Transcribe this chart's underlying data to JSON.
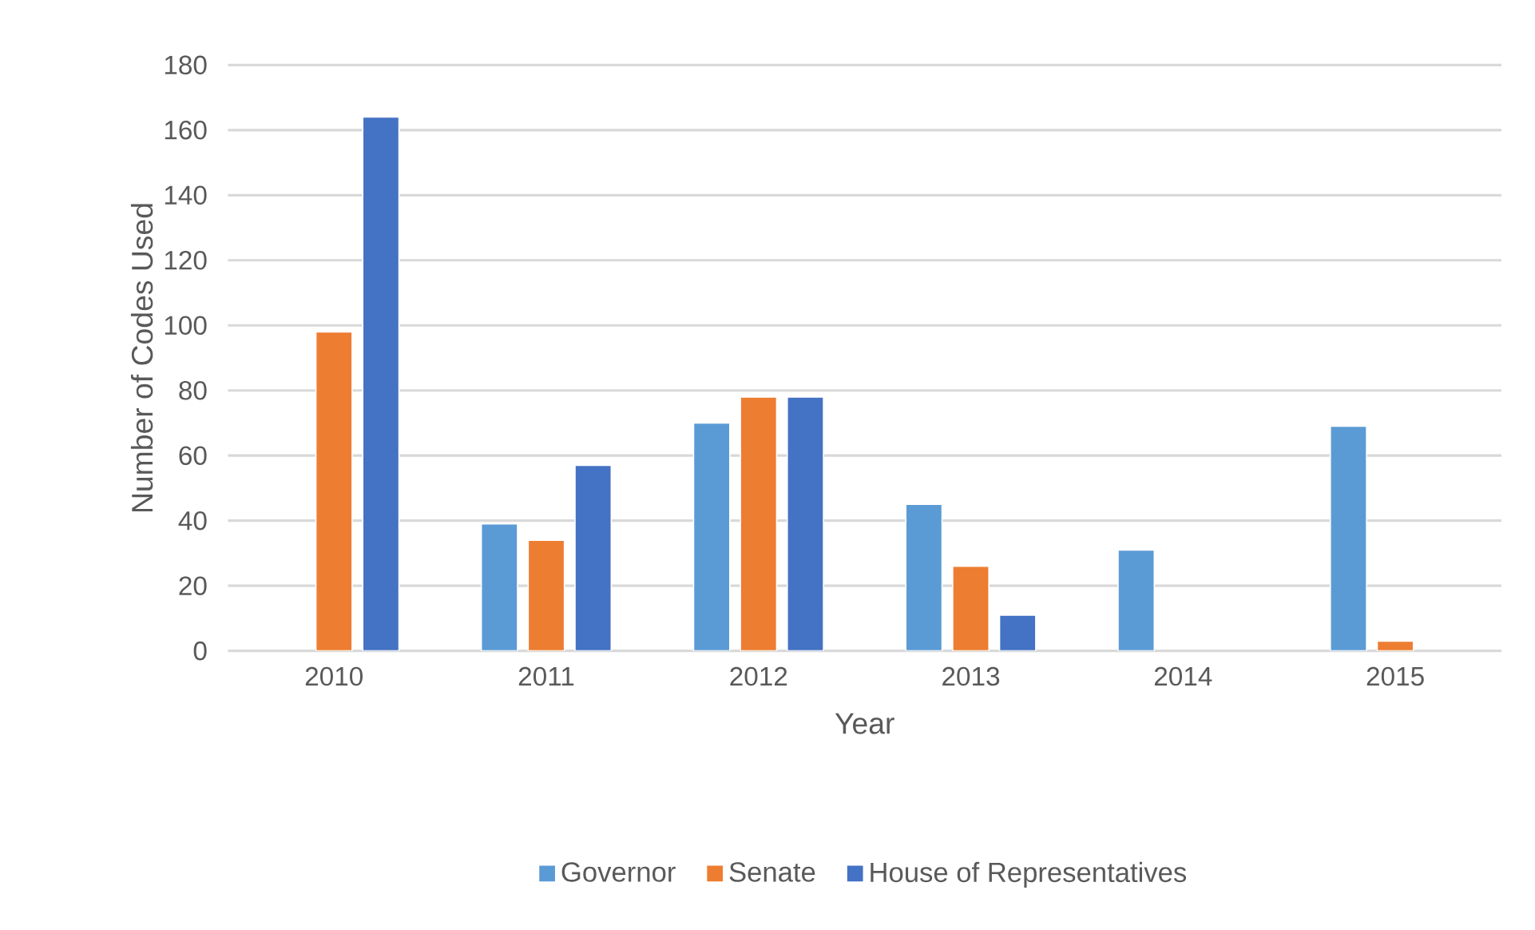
{
  "chart_data": {
    "type": "bar",
    "xlabel": "Year",
    "ylabel": "Number of Codes Used",
    "categories": [
      "2010",
      "2011",
      "2012",
      "2013",
      "2014",
      "2015"
    ],
    "series": [
      {
        "name": "Governor",
        "color": "#5b9bd5",
        "values": [
          null,
          39,
          70,
          45,
          31,
          69
        ]
      },
      {
        "name": "Senate",
        "color": "#ed7d31",
        "values": [
          98,
          34,
          78,
          26,
          null,
          3
        ]
      },
      {
        "name": "House of Representatives",
        "color": "#4472c4",
        "values": [
          164,
          57,
          78,
          11,
          null,
          null
        ]
      }
    ],
    "ylim": [
      0,
      180
    ],
    "yticks": [
      0,
      20,
      40,
      60,
      80,
      100,
      120,
      140,
      160,
      180
    ],
    "grid": "y",
    "legend": "bottom"
  }
}
